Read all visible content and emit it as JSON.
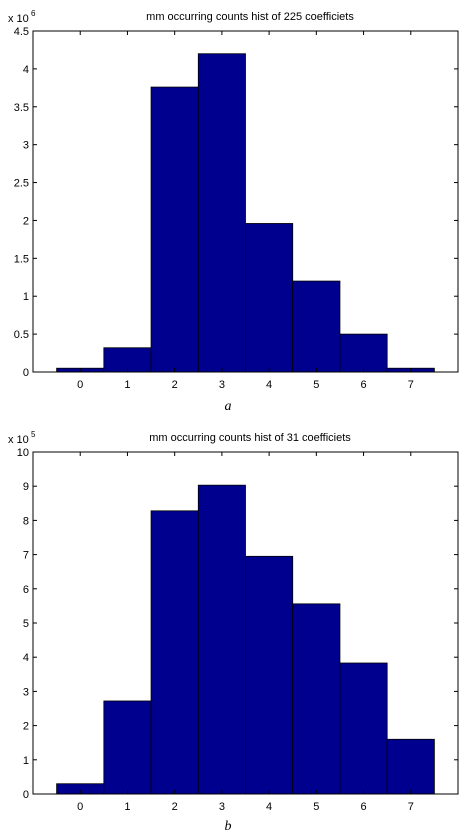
{
  "chart_data": [
    {
      "type": "bar",
      "title": "mm occurring counts hist of 225 coefficiets",
      "caption": "a",
      "multiplier_base": "x 10",
      "multiplier_exp": "6",
      "categories": [
        "0",
        "1",
        "2",
        "3",
        "4",
        "5",
        "6",
        "7"
      ],
      "x": [
        0,
        1,
        2,
        3,
        4,
        5,
        6,
        7
      ],
      "values": [
        0.05,
        0.32,
        3.76,
        4.2,
        1.96,
        1.2,
        0.5,
        0.05
      ],
      "value_scale": 1000000,
      "xlim": [
        -1,
        8
      ],
      "ylim": [
        0,
        4.5
      ],
      "yticks": [
        0,
        0.5,
        1,
        1.5,
        2,
        2.5,
        3,
        3.5,
        4,
        4.5
      ],
      "ytick_labels": [
        "0",
        "0.5",
        "1",
        "1.5",
        "2",
        "2.5",
        "3",
        "3.5",
        "4",
        "4.5"
      ],
      "bar_color": "#00008f",
      "edge_color": "#000000",
      "grid": false,
      "xlabel": "",
      "ylabel": ""
    },
    {
      "type": "bar",
      "title": "mm occurring counts hist of 31 coefficiets",
      "caption": "b",
      "multiplier_base": "x 10",
      "multiplier_exp": "5",
      "categories": [
        "0",
        "1",
        "2",
        "3",
        "4",
        "5",
        "6",
        "7"
      ],
      "x": [
        0,
        1,
        2,
        3,
        4,
        5,
        6,
        7
      ],
      "values": [
        0.3,
        2.72,
        8.28,
        9.03,
        6.95,
        5.56,
        3.83,
        1.6
      ],
      "value_scale": 100000,
      "xlim": [
        -1,
        8
      ],
      "ylim": [
        0,
        10
      ],
      "yticks": [
        0,
        1,
        2,
        3,
        4,
        5,
        6,
        7,
        8,
        9,
        10
      ],
      "ytick_labels": [
        "0",
        "1",
        "2",
        "3",
        "4",
        "5",
        "6",
        "7",
        "8",
        "9",
        "10"
      ],
      "bar_color": "#00008f",
      "edge_color": "#000000",
      "grid": false,
      "xlabel": "",
      "ylabel": ""
    }
  ]
}
